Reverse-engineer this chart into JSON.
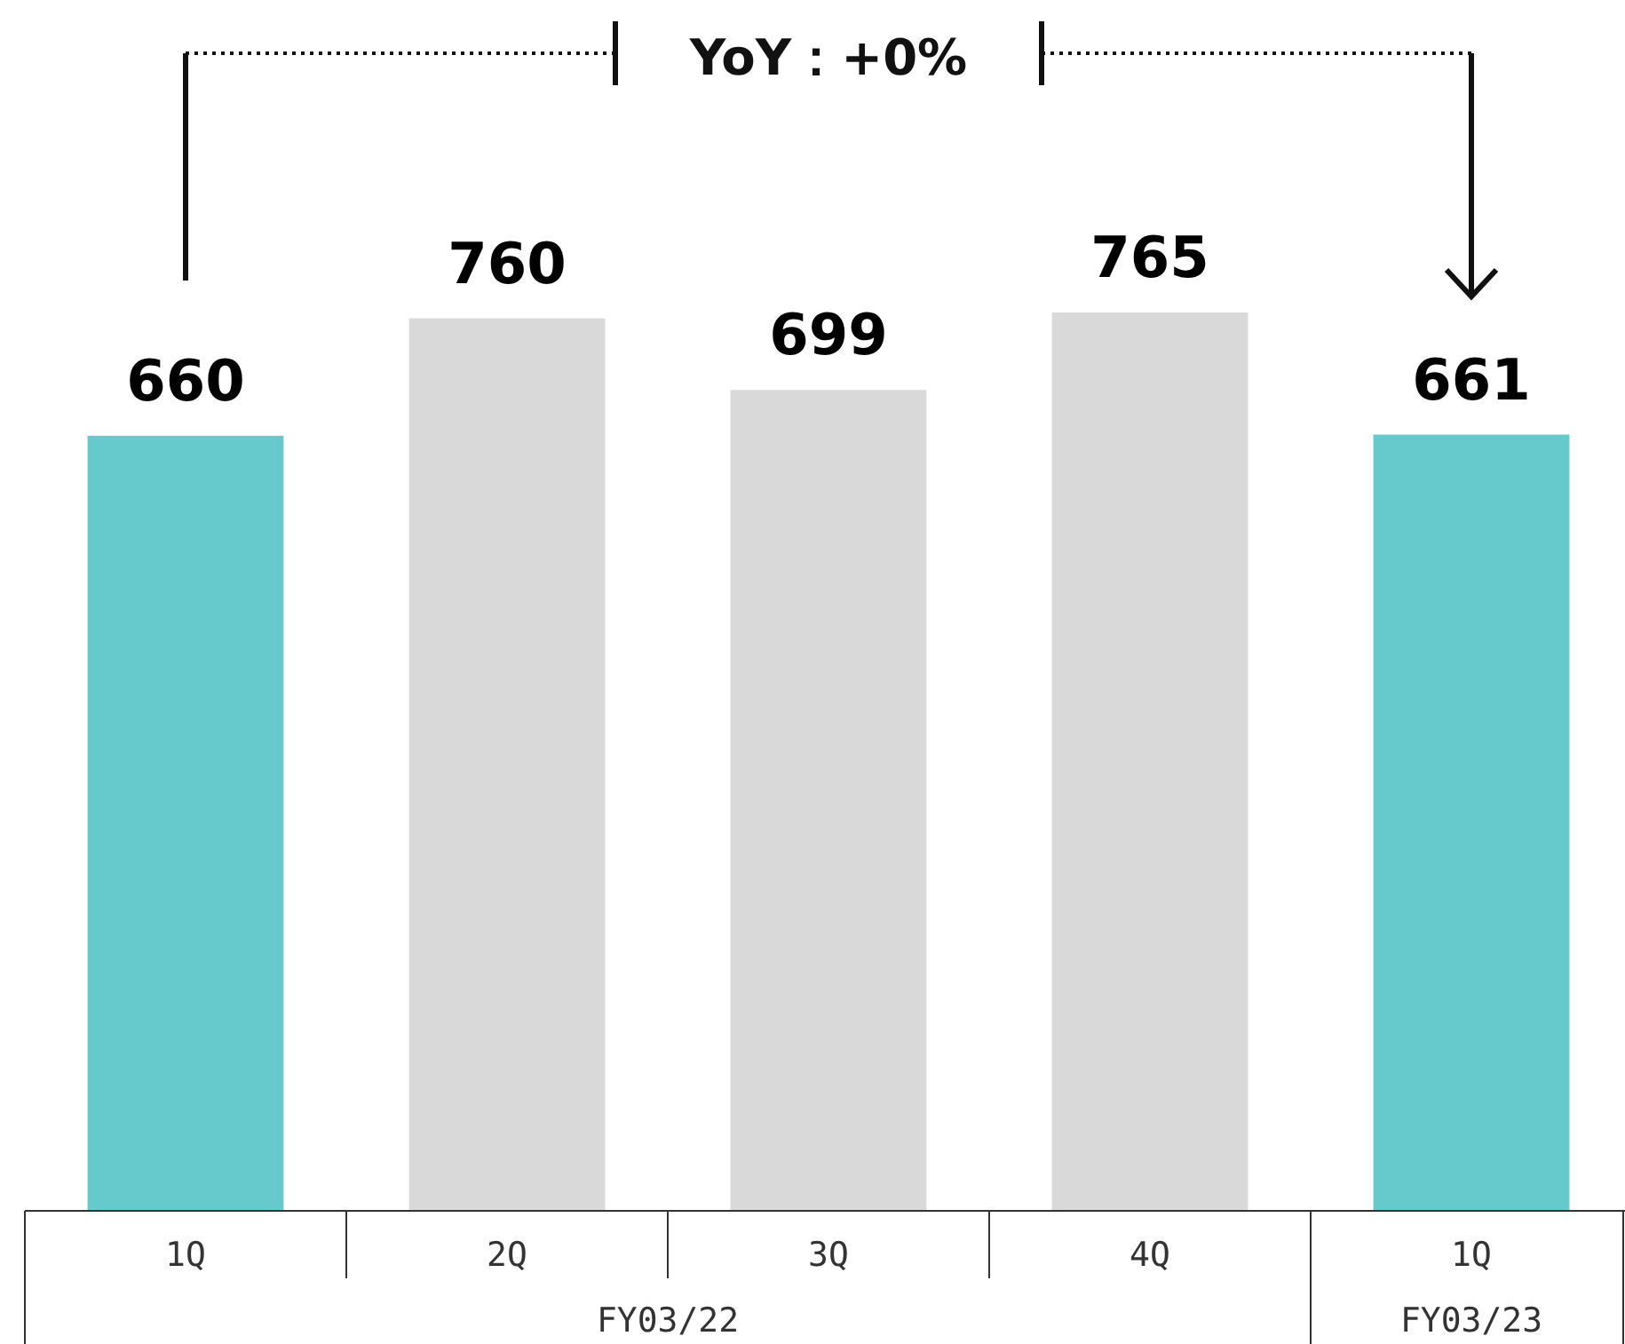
{
  "chart_data": {
    "type": "bar",
    "categories": [
      "1Q",
      "2Q",
      "3Q",
      "4Q",
      "1Q"
    ],
    "values": [
      660,
      760,
      699,
      765,
      661
    ],
    "colors": [
      "#66c9cb",
      "#d9d9d9",
      "#d9d9d9",
      "#d9d9d9",
      "#66c9cb"
    ],
    "data_labels": true,
    "annotations": [
      "YoY：+0%",
      "FY03/22",
      "FY03/23"
    ]
  }
}
